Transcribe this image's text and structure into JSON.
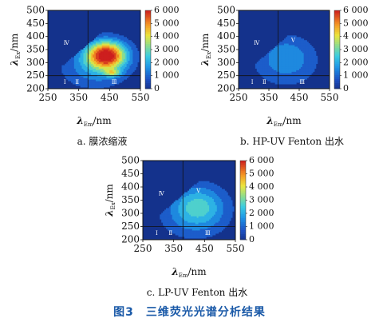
{
  "figure": {
    "title": "图3　三维荧光光谱分析结果"
  },
  "chart_data": [
    {
      "type": "heatmap",
      "caption": "a. 膜浓缩液",
      "xlabel_main": "λ",
      "xlabel_sub": "Em",
      "xlabel_unit": "/nm",
      "ylabel_main": "λ",
      "ylabel_sub": "Ex",
      "ylabel_unit": "/nm",
      "xlim": [
        250,
        550
      ],
      "ylim": [
        200,
        500
      ],
      "xticks": [
        "250",
        "350",
        "450",
        "550"
      ],
      "yticks": [
        "200",
        "250",
        "300",
        "350",
        "400",
        "450",
        "500"
      ],
      "colorbar": {
        "min": 0,
        "max": 6000,
        "ticks": [
          "0",
          "1 000",
          "2 000",
          "3 000",
          "4 000",
          "5 000",
          "6 000"
        ]
      },
      "region_lines": {
        "em": 380,
        "ex": 250
      },
      "region_labels": [
        {
          "text": "Ⅰ",
          "em": 305,
          "ex": 225
        },
        {
          "text": "Ⅱ",
          "em": 345,
          "ex": 225
        },
        {
          "text": "Ⅲ",
          "em": 465,
          "ex": 225
        },
        {
          "text": "Ⅳ",
          "em": 310,
          "ex": 375
        }
      ],
      "peaks": [
        {
          "em": 440,
          "ex": 330,
          "intensity": 6000,
          "sx": 45,
          "sy": 38
        },
        {
          "em": 460,
          "ex": 262,
          "intensity": 2200,
          "sx": 18,
          "sy": 10
        },
        {
          "em": 400,
          "ex": 280,
          "intensity": 1400,
          "sx": 80,
          "sy": 60
        }
      ]
    },
    {
      "type": "heatmap",
      "caption": "b. HP-UV Fenton 出水",
      "xlabel_main": "λ",
      "xlabel_sub": "Em",
      "xlabel_unit": "/nm",
      "ylabel_main": "λ",
      "ylabel_sub": "Ex",
      "ylabel_unit": "/nm",
      "xlim": [
        250,
        550
      ],
      "ylim": [
        200,
        500
      ],
      "xticks": [
        "250",
        "350",
        "450",
        "550"
      ],
      "yticks": [
        "200",
        "250",
        "300",
        "350",
        "400",
        "450",
        "500"
      ],
      "colorbar": {
        "min": 0,
        "max": 6000,
        "ticks": [
          "0",
          "1 000",
          "2 000",
          "3 000",
          "4 000",
          "5 000",
          "6 000"
        ]
      },
      "region_lines": {
        "em": 380,
        "ex": 250
      },
      "region_labels": [
        {
          "text": "Ⅰ",
          "em": 295,
          "ex": 225
        },
        {
          "text": "Ⅱ",
          "em": 335,
          "ex": 225
        },
        {
          "text": "Ⅲ",
          "em": 460,
          "ex": 225
        },
        {
          "text": "Ⅳ",
          "em": 310,
          "ex": 375
        },
        {
          "text": "Ⅴ",
          "em": 430,
          "ex": 385
        }
      ],
      "peaks": [
        {
          "em": 410,
          "ex": 330,
          "intensity": 1200,
          "sx": 60,
          "sy": 55
        },
        {
          "em": 400,
          "ex": 280,
          "intensity": 700,
          "sx": 90,
          "sy": 70
        }
      ]
    },
    {
      "type": "heatmap",
      "caption": "c. LP-UV Fenton 出水",
      "xlabel_main": "λ",
      "xlabel_sub": "Em",
      "xlabel_unit": "/nm",
      "ylabel_main": "λ",
      "ylabel_sub": "Ex",
      "ylabel_unit": "/nm",
      "xlim": [
        250,
        550
      ],
      "ylim": [
        200,
        500
      ],
      "xticks": [
        "250",
        "350",
        "450",
        "550"
      ],
      "yticks": [
        "200",
        "250",
        "300",
        "350",
        "400",
        "450",
        "500"
      ],
      "colorbar": {
        "min": 0,
        "max": 6000,
        "ticks": [
          "0",
          "1 000",
          "2 000",
          "3 000",
          "4 000",
          "5 000",
          "6 000"
        ]
      },
      "region_lines": {
        "em": 380,
        "ex": 250
      },
      "region_labels": [
        {
          "text": "Ⅰ",
          "em": 295,
          "ex": 225
        },
        {
          "text": "Ⅱ",
          "em": 340,
          "ex": 225
        },
        {
          "text": "Ⅲ",
          "em": 460,
          "ex": 225
        },
        {
          "text": "Ⅳ",
          "em": 310,
          "ex": 375
        },
        {
          "text": "Ⅴ",
          "em": 430,
          "ex": 385
        }
      ],
      "peaks": [
        {
          "em": 430,
          "ex": 330,
          "intensity": 2200,
          "sx": 60,
          "sy": 55
        },
        {
          "em": 410,
          "ex": 280,
          "intensity": 800,
          "sx": 90,
          "sy": 70
        }
      ]
    }
  ]
}
